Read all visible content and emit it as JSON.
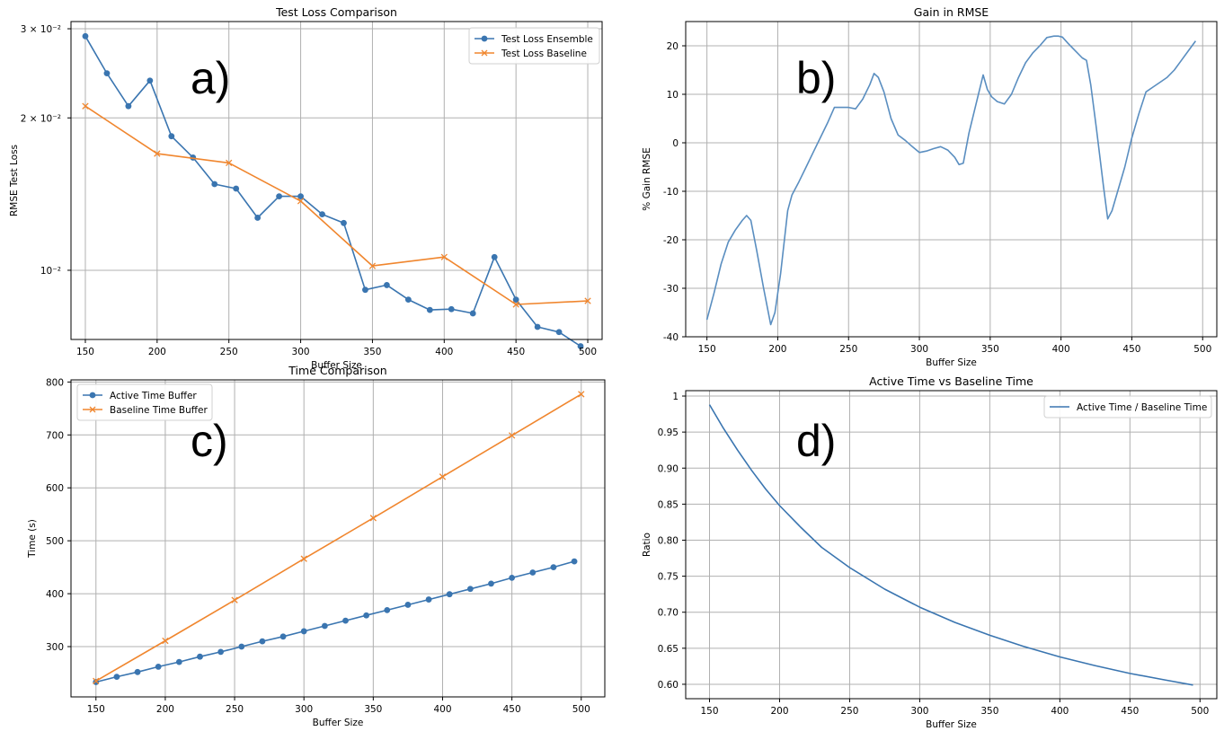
{
  "figure": {
    "panel_labels": [
      "a)",
      "b)",
      "c)",
      "d)"
    ]
  },
  "chart_data": [
    {
      "panel": "a)",
      "type": "line",
      "title": "Test Loss Comparison",
      "xlabel": "Buffer Size",
      "ylabel": "RMSE Test Loss",
      "yscale": "log",
      "xlim": [
        140,
        510
      ],
      "ylim": [
        0.0073,
        0.031
      ],
      "xticks": [
        150,
        200,
        250,
        300,
        350,
        400,
        450,
        500
      ],
      "yticks": [
        {
          "value": 0.03,
          "label": "3 × 10⁻²"
        },
        {
          "value": 0.02,
          "label": "2 × 10⁻²"
        },
        {
          "value": 0.01,
          "label": "10⁻²"
        }
      ],
      "grid": true,
      "legend": "top-right",
      "series": [
        {
          "name": "Test Loss Ensemble",
          "color": "#3a75b0",
          "marker": "circle",
          "x": [
            150,
            165,
            180,
            195,
            210,
            225,
            240,
            255,
            270,
            285,
            300,
            315,
            330,
            345,
            360,
            375,
            390,
            405,
            420,
            435,
            450,
            465,
            480,
            495
          ],
          "y": [
            0.029,
            0.0245,
            0.0211,
            0.0237,
            0.0184,
            0.0167,
            0.0148,
            0.0145,
            0.0127,
            0.014,
            0.014,
            0.0129,
            0.0124,
            0.00915,
            0.00935,
            0.00875,
            0.00835,
            0.00838,
            0.00822,
            0.01062,
            0.00875,
            0.00773,
            0.00755,
            0.00708
          ]
        },
        {
          "name": "Test Loss Baseline",
          "color": "#f0862e",
          "marker": "x",
          "x": [
            150,
            200,
            250,
            300,
            350,
            400,
            450,
            500
          ],
          "y": [
            0.0211,
            0.017,
            0.0163,
            0.0137,
            0.0102,
            0.01062,
            0.00856,
            0.0087
          ]
        }
      ]
    },
    {
      "panel": "b)",
      "type": "line",
      "title": "Gain in RMSE",
      "xlabel": "Buffer Size",
      "ylabel": "% Gain RMSE",
      "xlim": [
        135,
        510
      ],
      "ylim": [
        -40,
        25
      ],
      "xticks": [
        150,
        200,
        250,
        300,
        350,
        400,
        450,
        500
      ],
      "yticks": [
        -40,
        -30,
        -20,
        -10,
        0,
        10,
        20
      ],
      "grid": true,
      "series": [
        {
          "name": "",
          "color": "#5a8ec0",
          "marker": "none",
          "x": [
            150,
            155,
            160,
            165,
            170,
            175,
            178,
            181,
            185,
            190,
            195,
            198,
            202,
            207,
            210,
            215,
            220,
            225,
            230,
            235,
            240,
            245,
            250,
            255,
            260,
            265,
            268,
            271,
            275,
            280,
            285,
            290,
            295,
            300,
            305,
            310,
            315,
            320,
            325,
            328,
            331,
            335,
            340,
            345,
            348,
            351,
            355,
            360,
            365,
            370,
            375,
            380,
            385,
            390,
            395,
            398,
            401,
            405,
            410,
            415,
            418,
            421,
            425,
            430,
            433,
            436,
            440,
            445,
            450,
            455,
            460,
            465,
            470,
            475,
            480,
            485,
            490,
            495
          ],
          "y": [
            -36.5,
            -31,
            -25,
            -20.5,
            -18,
            -16,
            -15,
            -16,
            -22,
            -30,
            -37.5,
            -35,
            -27,
            -14,
            -10.8,
            -8,
            -5,
            -2,
            1,
            4,
            7.3,
            7.3,
            7.3,
            7,
            9,
            12,
            14.3,
            13.5,
            10.5,
            5,
            1.6,
            0.5,
            -0.8,
            -2,
            -1.7,
            -1.2,
            -0.8,
            -1.5,
            -3,
            -4.5,
            -4.2,
            2,
            8,
            14,
            11,
            9.5,
            8.5,
            8,
            10,
            13.5,
            16.5,
            18.5,
            20,
            21.7,
            22,
            22,
            21.8,
            20.5,
            19,
            17.5,
            17,
            12,
            3,
            -9,
            -15.7,
            -14,
            -10,
            -5,
            1,
            6,
            10.5,
            11.5,
            12.5,
            13.5,
            15,
            17,
            19,
            21
          ]
        }
      ]
    },
    {
      "panel": "c)",
      "type": "line",
      "title": "Time Comparison",
      "xlabel": "Buffer Size",
      "ylabel": "Time (s)",
      "xlim": [
        132,
        517
      ],
      "ylim": [
        205,
        804
      ],
      "xticks": [
        150,
        200,
        250,
        300,
        350,
        400,
        450,
        500
      ],
      "yticks": [
        300,
        400,
        500,
        600,
        700,
        800
      ],
      "grid": true,
      "legend": "top-left",
      "series": [
        {
          "name": "Active Time Buffer",
          "color": "#3a75b0",
          "marker": "circle",
          "x": [
            150,
            165,
            180,
            195,
            210,
            225,
            240,
            255,
            270,
            285,
            300,
            315,
            330,
            345,
            360,
            375,
            390,
            405,
            420,
            435,
            450,
            465,
            480,
            495
          ],
          "y": [
            233,
            243,
            252,
            262,
            271,
            281,
            290,
            300,
            310,
            319,
            329,
            339,
            349,
            359,
            369,
            379,
            389,
            399,
            409,
            419,
            430,
            440,
            450,
            461
          ]
        },
        {
          "name": "Baseline Time Buffer",
          "color": "#f0862e",
          "marker": "x",
          "x": [
            150,
            200,
            250,
            300,
            350,
            400,
            450,
            500
          ],
          "y": [
            235,
            311,
            388,
            466,
            543,
            621,
            699,
            777
          ]
        }
      ]
    },
    {
      "panel": "d)",
      "type": "line",
      "title": "Active Time vs Baseline Time",
      "xlabel": "Buffer Size",
      "ylabel": "Ratio",
      "xlim": [
        133,
        512
      ],
      "ylim": [
        0.58,
        1.0075
      ],
      "xticks": [
        150,
        200,
        250,
        300,
        350,
        400,
        450,
        500
      ],
      "yticks": [
        0.6,
        0.65,
        0.7,
        0.75,
        0.8,
        0.85,
        0.9,
        0.95,
        1.0
      ],
      "grid": true,
      "legend": "top-right",
      "series": [
        {
          "name": "Active Time / Baseline Time",
          "color": "#3a75b0",
          "marker": "none",
          "x": [
            150,
            160,
            170,
            180,
            190,
            200,
            215,
            230,
            250,
            275,
            300,
            325,
            350,
            375,
            400,
            425,
            450,
            475,
            495
          ],
          "y": [
            0.988,
            0.955,
            0.925,
            0.897,
            0.871,
            0.848,
            0.818,
            0.79,
            0.762,
            0.732,
            0.707,
            0.686,
            0.668,
            0.652,
            0.638,
            0.626,
            0.615,
            0.606,
            0.599
          ]
        }
      ]
    }
  ]
}
